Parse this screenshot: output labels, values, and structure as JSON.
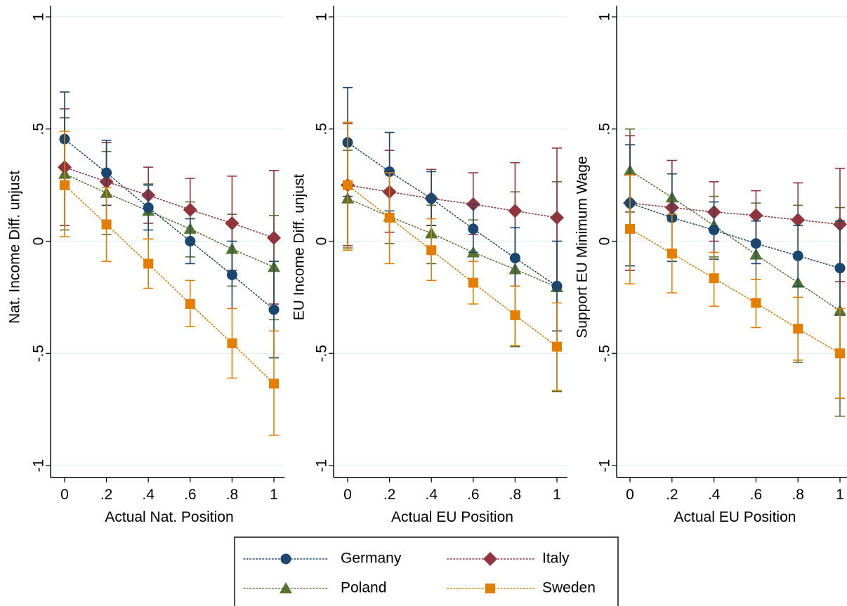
{
  "chart_data": [
    {
      "type": "scatter",
      "xlabel": "Actual Nat. Position",
      "ylabel": "Nat. Income Diff. unjust",
      "x": [
        0,
        0.2,
        0.4,
        0.6,
        0.8,
        1
      ],
      "x_tick_labels": [
        "0",
        ".2",
        ".4",
        ".6",
        ".8",
        "1"
      ],
      "y_ticks": [
        1,
        0.5,
        0,
        -0.5,
        -1
      ],
      "y_tick_labels": [
        "1",
        ".5",
        "0",
        "-.5",
        "-1"
      ],
      "ylim": [
        -1.05,
        1.05
      ],
      "xlim": [
        -0.05,
        1.05
      ],
      "grid": true,
      "series": [
        {
          "name": "Germany",
          "values": [
            0.455,
            0.305,
            0.15,
            0.0,
            -0.15,
            -0.305
          ],
          "ci_low": [
            0.25,
            0.16,
            0.05,
            -0.1,
            -0.3,
            -0.52
          ],
          "ci_high": [
            0.665,
            0.45,
            0.25,
            0.1,
            0.0,
            -0.09
          ]
        },
        {
          "name": "Italy",
          "values": [
            0.33,
            0.265,
            0.205,
            0.14,
            0.08,
            0.015
          ],
          "ci_low": [
            0.07,
            0.09,
            0.08,
            0.0,
            -0.13,
            -0.28
          ],
          "ci_high": [
            0.59,
            0.44,
            0.33,
            0.28,
            0.29,
            0.315
          ]
        },
        {
          "name": "Poland",
          "values": [
            0.3,
            0.215,
            0.135,
            0.055,
            -0.035,
            -0.115
          ],
          "ci_low": [
            0.05,
            0.03,
            0.01,
            -0.07,
            -0.2,
            -0.35
          ],
          "ci_high": [
            0.55,
            0.4,
            0.255,
            0.175,
            0.12,
            0.115
          ]
        },
        {
          "name": "Sweden",
          "values": [
            0.25,
            0.075,
            -0.1,
            -0.28,
            -0.455,
            -0.635
          ],
          "ci_low": [
            0.02,
            -0.09,
            -0.21,
            -0.38,
            -0.61,
            -0.865
          ],
          "ci_high": [
            0.49,
            0.24,
            0.01,
            -0.175,
            -0.3,
            -0.4
          ]
        }
      ]
    },
    {
      "type": "scatter",
      "xlabel": "Actual EU Position",
      "ylabel": "EU Income Diff. unjust",
      "x": [
        0,
        0.2,
        0.4,
        0.6,
        0.8,
        1
      ],
      "x_tick_labels": [
        "0",
        ".2",
        ".4",
        ".6",
        ".8",
        "1"
      ],
      "y_ticks": [
        1,
        0.5,
        0,
        -0.5,
        -1
      ],
      "y_tick_labels": [
        "1",
        ".5",
        "0",
        "-.5",
        "-1"
      ],
      "ylim": [
        -1.05,
        1.05
      ],
      "xlim": [
        -0.05,
        1.05
      ],
      "grid": true,
      "series": [
        {
          "name": "Germany",
          "values": [
            0.44,
            0.31,
            0.19,
            0.055,
            -0.075,
            -0.2
          ],
          "ci_low": [
            0.2,
            0.135,
            0.07,
            -0.05,
            -0.2,
            -0.4
          ],
          "ci_high": [
            0.685,
            0.485,
            0.31,
            0.165,
            0.06,
            0.0
          ]
        },
        {
          "name": "Italy",
          "values": [
            0.25,
            0.22,
            0.19,
            0.165,
            0.135,
            0.105
          ],
          "ci_low": [
            -0.02,
            0.04,
            0.07,
            0.03,
            -0.08,
            -0.2
          ],
          "ci_high": [
            0.525,
            0.405,
            0.32,
            0.305,
            0.35,
            0.415
          ]
        },
        {
          "name": "Poland",
          "values": [
            0.19,
            0.11,
            0.035,
            -0.05,
            -0.125,
            -0.205
          ],
          "ci_low": [
            -0.03,
            -0.01,
            -0.1,
            -0.19,
            -0.47,
            -0.67
          ],
          "ci_high": [
            0.405,
            0.23,
            0.16,
            0.095,
            0.22,
            0.265
          ]
        },
        {
          "name": "Sweden",
          "values": [
            0.25,
            0.105,
            -0.04,
            -0.185,
            -0.33,
            -0.47
          ],
          "ci_low": [
            -0.04,
            -0.1,
            -0.175,
            -0.28,
            -0.465,
            -0.665
          ],
          "ci_high": [
            0.53,
            0.305,
            0.1,
            -0.09,
            -0.2,
            -0.275
          ]
        }
      ]
    },
    {
      "type": "scatter",
      "xlabel": "Actual EU Position",
      "ylabel": "Support EU Minimum Wage",
      "x": [
        0,
        0.2,
        0.4,
        0.6,
        0.8,
        1
      ],
      "x_tick_labels": [
        "0",
        ".2",
        ".4",
        ".6",
        ".8",
        "1"
      ],
      "y_ticks": [
        1,
        0.5,
        0,
        -0.5,
        -1
      ],
      "y_tick_labels": [
        "1",
        ".5",
        "0",
        "-.5",
        "-1"
      ],
      "ylim": [
        -1.05,
        1.05
      ],
      "xlim": [
        -0.05,
        1.05
      ],
      "grid": true,
      "series": [
        {
          "name": "Germany",
          "values": [
            0.17,
            0.105,
            0.05,
            -0.01,
            -0.065,
            -0.12
          ],
          "ci_low": [
            -0.11,
            -0.09,
            -0.08,
            -0.1,
            -0.2,
            -0.33
          ],
          "ci_high": [
            0.43,
            0.3,
            0.175,
            0.09,
            0.07,
            0.09
          ]
        },
        {
          "name": "Italy",
          "values": [
            0.17,
            0.15,
            0.13,
            0.115,
            0.095,
            0.075
          ],
          "ci_low": [
            -0.13,
            -0.06,
            0.0,
            0.0,
            -0.07,
            -0.18
          ],
          "ci_high": [
            0.47,
            0.36,
            0.265,
            0.225,
            0.26,
            0.325
          ]
        },
        {
          "name": "Poland",
          "values": [
            0.315,
            0.195,
            0.07,
            -0.06,
            -0.185,
            -0.31
          ],
          "ci_low": [
            0.13,
            0.09,
            -0.07,
            -0.17,
            -0.54,
            -0.78
          ],
          "ci_high": [
            0.5,
            0.3,
            0.2,
            0.17,
            0.16,
            0.15
          ]
        },
        {
          "name": "Sweden",
          "values": [
            0.055,
            -0.055,
            -0.165,
            -0.275,
            -0.39,
            -0.5
          ],
          "ci_low": [
            -0.19,
            -0.23,
            -0.29,
            -0.385,
            -0.53,
            -0.7
          ],
          "ci_high": [
            0.295,
            0.12,
            -0.05,
            -0.17,
            -0.25,
            -0.3
          ]
        }
      ]
    }
  ],
  "colors": {
    "Germany": "#1a476f",
    "Italy": "#90353b",
    "Poland": "#55752f",
    "Sweden": "#e37e00",
    "grid": "#e4efef"
  },
  "markers": {
    "Germany": "circle",
    "Italy": "diamond",
    "Poland": "triangle",
    "Sweden": "square"
  },
  "legend": {
    "placement": "bottom",
    "entries": [
      {
        "name": "Germany",
        "label": "Germany"
      },
      {
        "name": "Italy",
        "label": "Italy"
      },
      {
        "name": "Poland",
        "label": "Poland"
      },
      {
        "name": "Sweden",
        "label": "Sweden"
      }
    ]
  }
}
